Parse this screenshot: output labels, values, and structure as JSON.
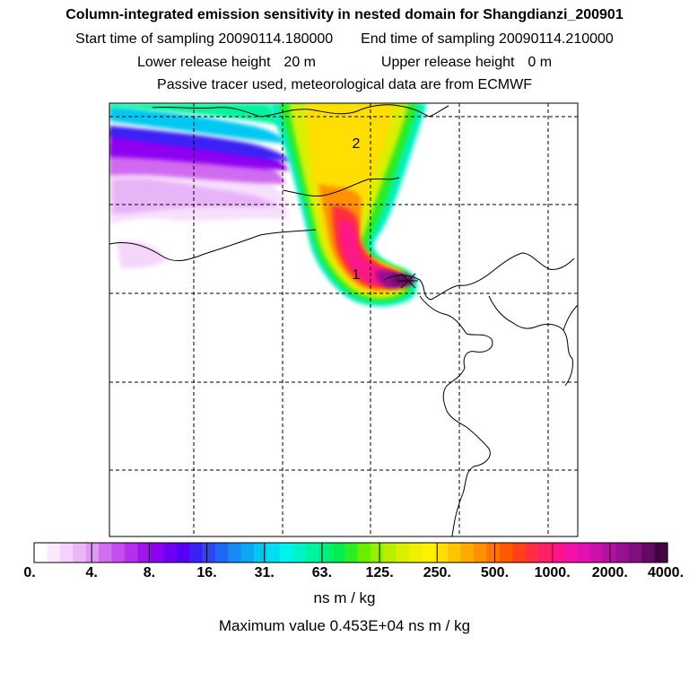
{
  "title": "Column-integrated emission sensitivity in nested domain for Shangdianzi_200901",
  "sampling": {
    "start_label": "Start time of sampling",
    "start_value": "20090114.180000",
    "end_label": "End time of sampling",
    "end_value": "20090114.210000"
  },
  "release": {
    "lower_label": "Lower release height",
    "lower_value": "20 m",
    "upper_label": "Upper release height",
    "upper_value": "0 m"
  },
  "tracer_note": "Passive tracer used, meteorological data are from ECMWF",
  "map": {
    "markers": [
      {
        "label": "1",
        "description": "release location"
      },
      {
        "label": "2",
        "description": "secondary marker"
      }
    ]
  },
  "colorbar": {
    "tick_labels": [
      "0.",
      "4.",
      "8.",
      "16.",
      "31.",
      "63.",
      "125.",
      "250.",
      "500.",
      "1000.",
      "2000.",
      "4000."
    ],
    "colors": [
      "#ffffff",
      "#fbe9fd",
      "#f4d2fb",
      "#eab6f8",
      "#df98f4",
      "#d26ef0",
      "#c64cf0",
      "#b72fee",
      "#a015ee",
      "#8f00f2",
      "#6f00f2",
      "#5300f4",
      "#3a22f4",
      "#2c44f2",
      "#1f66f2",
      "#158af2",
      "#0aa8f2",
      "#04c4f2",
      "#00dff2",
      "#00f4ec",
      "#00f4c8",
      "#00f4a0",
      "#00f07a",
      "#00ee54",
      "#28ee28",
      "#66f000",
      "#92f000",
      "#b8f000",
      "#d8f000",
      "#eef000",
      "#fff000",
      "#ffde00",
      "#ffc400",
      "#ffaa00",
      "#ff9000",
      "#ff7400",
      "#ff5a00",
      "#ff4018",
      "#ff2e40",
      "#ff1e68",
      "#ff1288",
      "#f212a8",
      "#e210b0",
      "#cc10ac",
      "#b410a2",
      "#981092",
      "#7e107e",
      "#620a62",
      "#440444"
    ],
    "units": "ns m / kg"
  },
  "max_value_label": "Maximum value",
  "max_value": "0.453E+04",
  "max_value_units": "ns m / kg"
}
